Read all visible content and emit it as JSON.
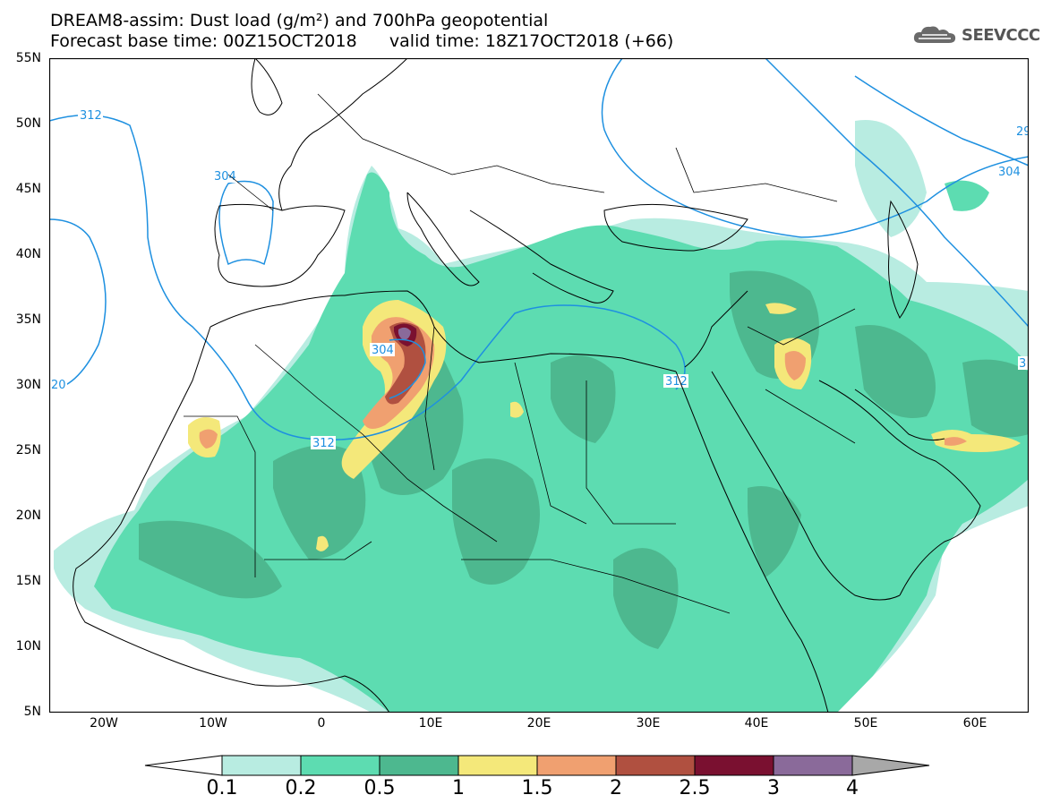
{
  "title_line1": "DREAM8-assim: Dust load (g/m²) and 700hPa geopotential",
  "title_line2": "Forecast base time: 00Z15OCT2018      valid time: 18Z17OCT2018 (+66)",
  "logo": {
    "text": "SEEVCCC",
    "icon": "cloud-icon"
  },
  "map": {
    "lat_labels": [
      "55N",
      "50N",
      "45N",
      "40N",
      "35N",
      "30N",
      "25N",
      "20N",
      "15N",
      "10N",
      "5N"
    ],
    "lon_labels": [
      "20W",
      "10W",
      "0",
      "10E",
      "20E",
      "30E",
      "40E",
      "50E",
      "60E"
    ],
    "lon_range": [
      -25,
      65
    ],
    "lat_range": [
      5,
      55
    ],
    "contour_labels": [
      "312",
      "304",
      "20",
      "304",
      "312",
      "312",
      "29",
      "304",
      "3"
    ]
  },
  "colorbar": {
    "labels": [
      "0.1",
      "0.2",
      "0.5",
      "1",
      "1.5",
      "2",
      "2.5",
      "3",
      "4"
    ],
    "colors": [
      "#b8ece1",
      "#5ddcb1",
      "#4db88f",
      "#f4e87a",
      "#f0a070",
      "#b05040",
      "#7a1030",
      "#8a6a9a"
    ],
    "under_color": "#ffffff",
    "over_color": "#a8a8a8"
  },
  "colors": {
    "contour": "#1e90e0",
    "coast": "#000000"
  }
}
